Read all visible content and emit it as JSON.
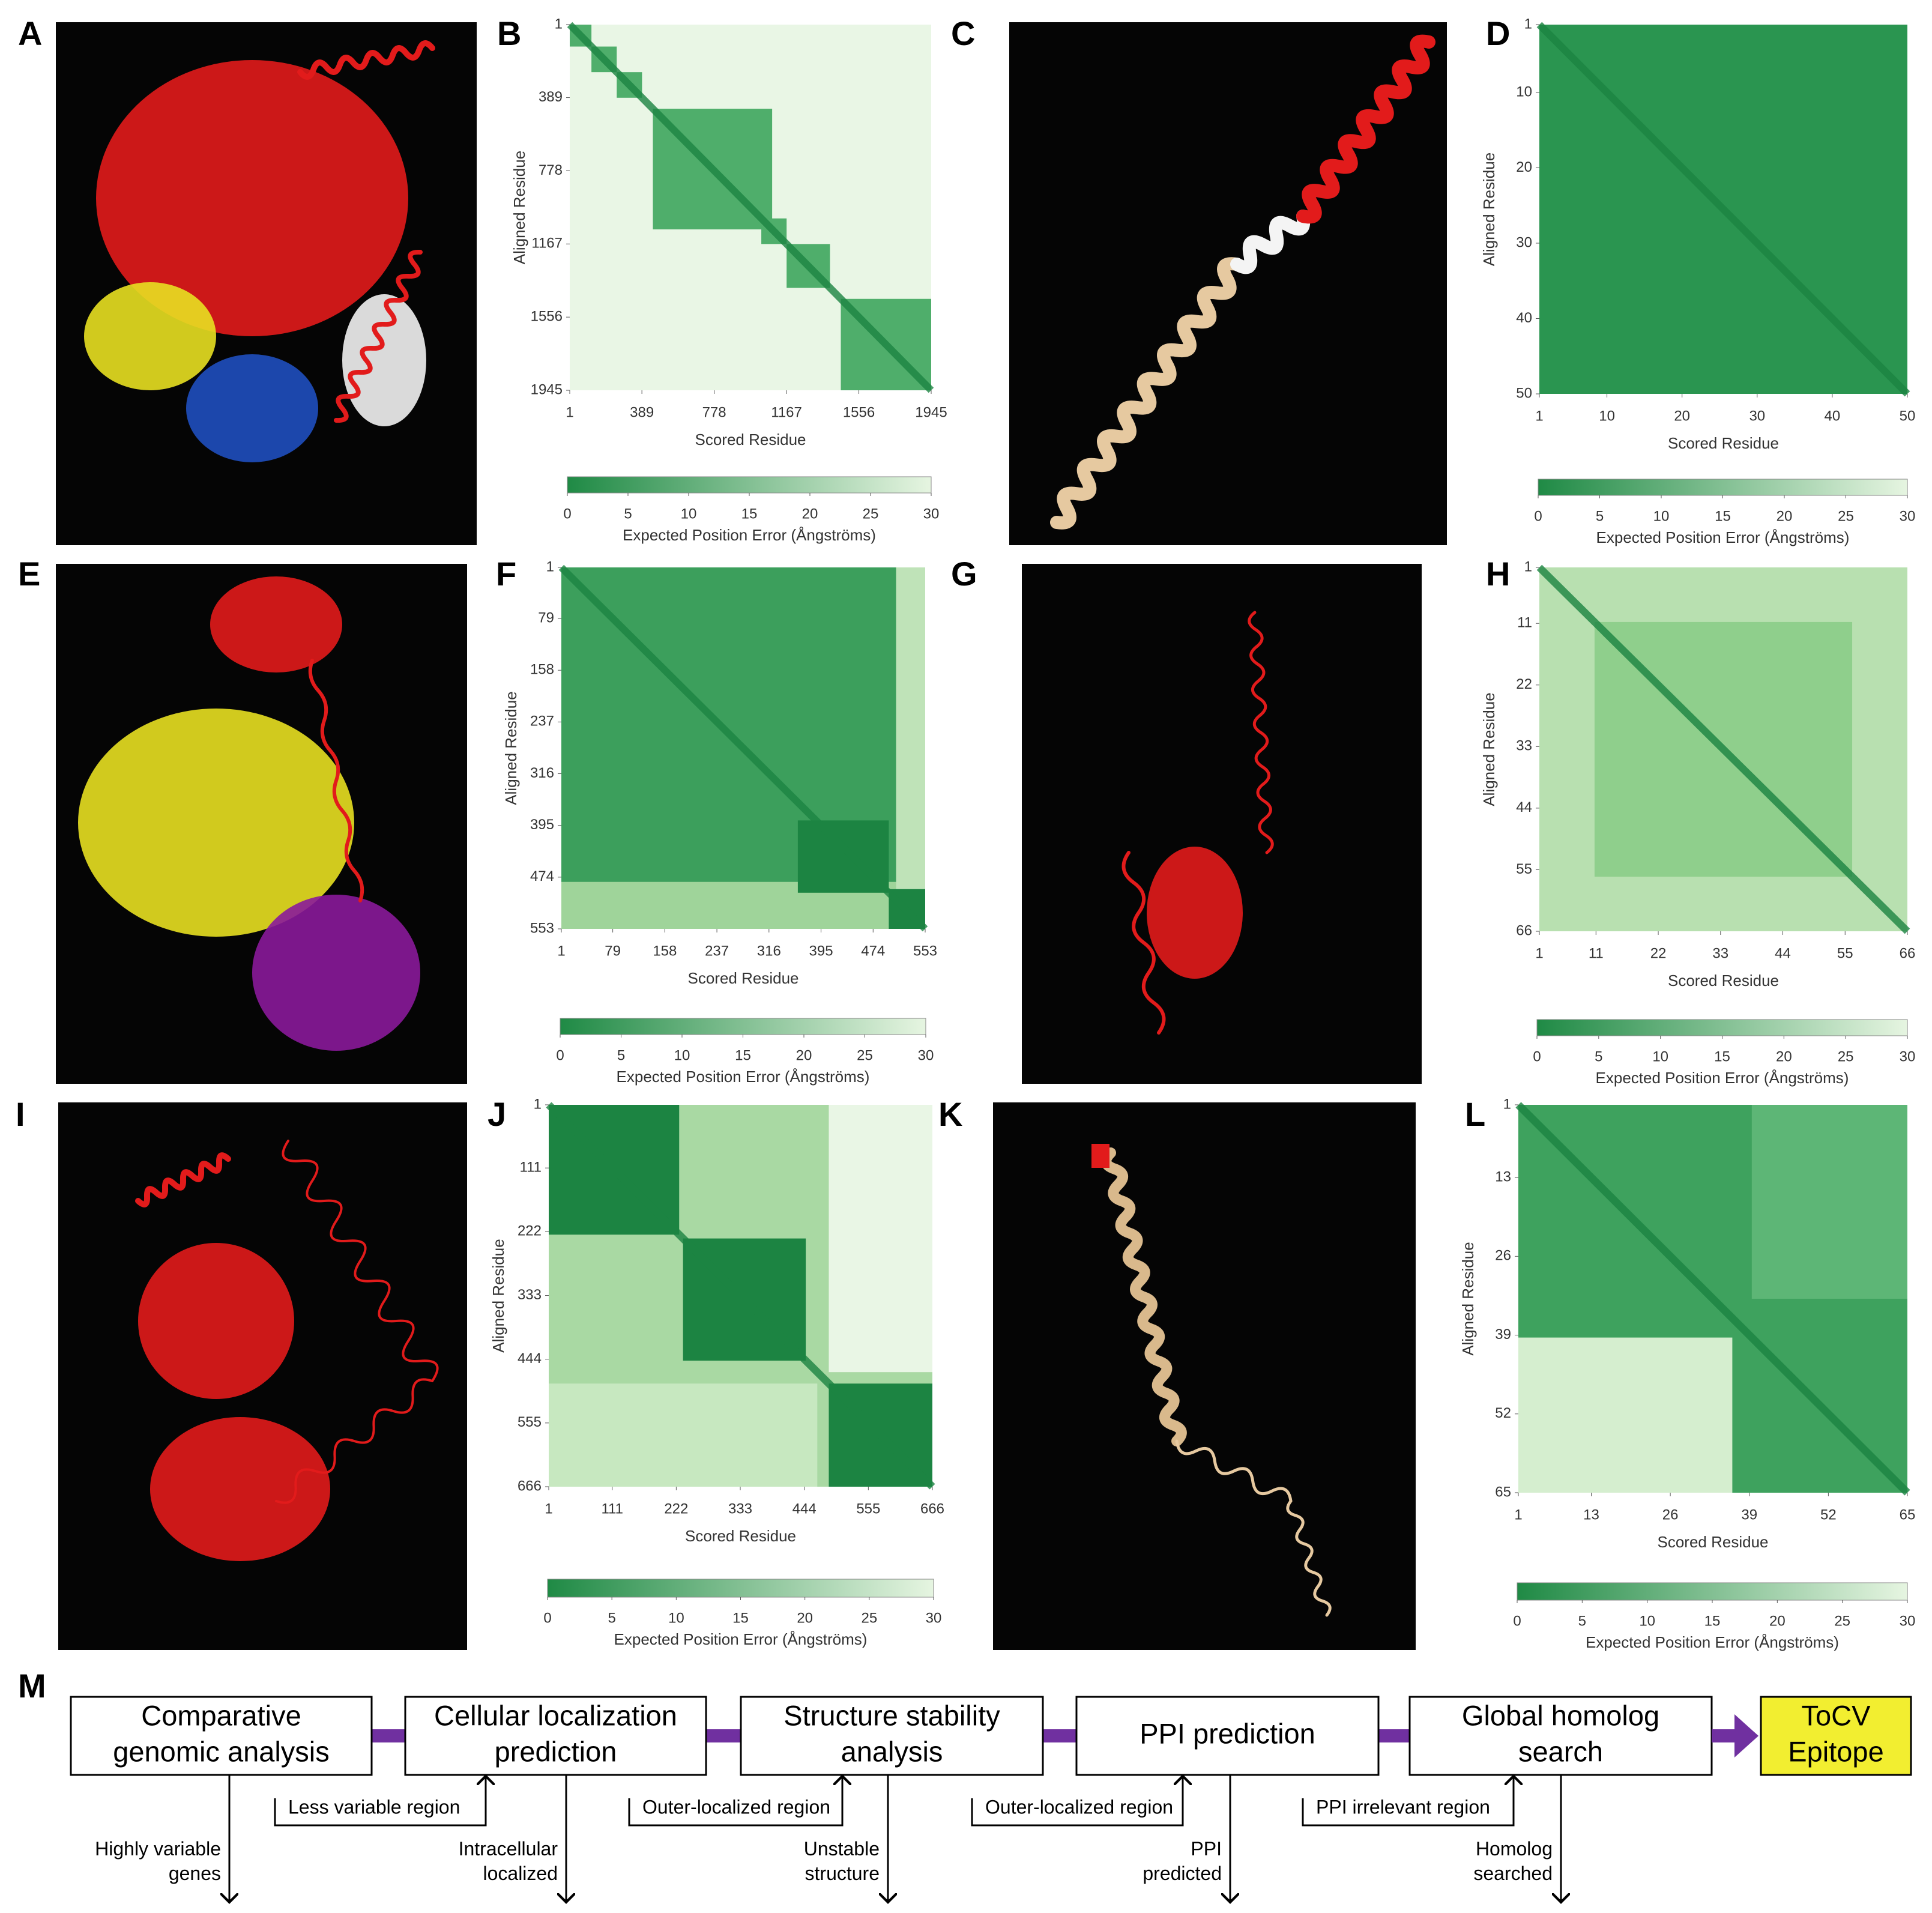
{
  "panels": [
    {
      "letter": "A"
    },
    {
      "letter": "B",
      "heatmap": {
        "xlim": [
          1,
          1945
        ],
        "ylim": [
          1,
          1945
        ],
        "xticks": [
          1,
          389,
          778,
          1167,
          1556,
          1945
        ],
        "yticks": [
          1,
          389,
          778,
          1167,
          1556,
          1945
        ],
        "xlabel": "Scored Residue",
        "ylabel": "Aligned Residue",
        "colorbar_lim": [
          0,
          30
        ],
        "colorbar_ticks": [
          0,
          5,
          10,
          15,
          20,
          25,
          30
        ],
        "colorbar_label": "Expected Position Error (Ångströms)"
      }
    },
    {
      "letter": "C"
    },
    {
      "letter": "D",
      "heatmap": {
        "xlim": [
          1,
          50
        ],
        "ylim": [
          1,
          50
        ],
        "xticks": [
          1,
          10,
          20,
          30,
          40,
          50
        ],
        "yticks": [
          1,
          10,
          20,
          30,
          40,
          50
        ],
        "xlabel": "Scored Residue",
        "ylabel": "Aligned Residue",
        "colorbar_lim": [
          0,
          30
        ],
        "colorbar_ticks": [
          0,
          5,
          10,
          15,
          20,
          25,
          30
        ],
        "colorbar_label": "Expected Position Error (Ångströms)"
      }
    },
    {
      "letter": "E"
    },
    {
      "letter": "F",
      "heatmap": {
        "xlim": [
          1,
          553
        ],
        "ylim": [
          1,
          553
        ],
        "xticks": [
          1,
          79,
          158,
          237,
          316,
          395,
          474,
          553
        ],
        "yticks": [
          1,
          79,
          158,
          237,
          316,
          395,
          474,
          553
        ],
        "xlabel": "Scored Residue",
        "ylabel": "Aligned Residue",
        "colorbar_lim": [
          0,
          30
        ],
        "colorbar_ticks": [
          0,
          5,
          10,
          15,
          20,
          25,
          30
        ],
        "colorbar_label": "Expected Position Error (Ångströms)"
      }
    },
    {
      "letter": "G"
    },
    {
      "letter": "H",
      "heatmap": {
        "xlim": [
          1,
          66
        ],
        "ylim": [
          1,
          66
        ],
        "xticks": [
          1,
          11,
          22,
          33,
          44,
          55,
          66
        ],
        "yticks": [
          1,
          11,
          22,
          33,
          44,
          55,
          66
        ],
        "xlabel": "Scored Residue",
        "ylabel": "Aligned Residue",
        "colorbar_lim": [
          0,
          30
        ],
        "colorbar_ticks": [
          0,
          5,
          10,
          15,
          20,
          25,
          30
        ],
        "colorbar_label": "Expected Position Error (Ångströms)"
      }
    },
    {
      "letter": "I"
    },
    {
      "letter": "J",
      "heatmap": {
        "xlim": [
          1,
          666
        ],
        "ylim": [
          1,
          666
        ],
        "xticks": [
          1,
          111,
          222,
          333,
          444,
          555,
          666
        ],
        "yticks": [
          1,
          111,
          222,
          333,
          444,
          555,
          666
        ],
        "xlabel": "Scored Residue",
        "ylabel": "Aligned Residue",
        "colorbar_lim": [
          0,
          30
        ],
        "colorbar_ticks": [
          0,
          5,
          10,
          15,
          20,
          25,
          30
        ],
        "colorbar_label": "Expected Position Error (Ångströms)"
      }
    },
    {
      "letter": "K"
    },
    {
      "letter": "L",
      "heatmap": {
        "xlim": [
          1,
          65
        ],
        "ylim": [
          1,
          65
        ],
        "xticks": [
          1,
          13,
          26,
          39,
          52,
          65
        ],
        "yticks": [
          1,
          13,
          26,
          39,
          52,
          65
        ],
        "xlabel": "Scored Residue",
        "ylabel": "Aligned Residue",
        "colorbar_lim": [
          0,
          30
        ],
        "colorbar_ticks": [
          0,
          5,
          10,
          15,
          20,
          25,
          30
        ],
        "colorbar_label": "Expected Position Error (Ångströms)"
      }
    }
  ],
  "flow": {
    "letter": "M",
    "steps": [
      {
        "label_lines": [
          "Comparative",
          "genomic analysis"
        ],
        "excluded_lines": [
          "Highly variable",
          "genes"
        ]
      },
      {
        "label_lines": [
          "Cellular localization",
          "prediction"
        ],
        "input": "Less variable region",
        "excluded_lines": [
          "Intracellular",
          "localized"
        ]
      },
      {
        "label_lines": [
          "Structure stability",
          "analysis"
        ],
        "input": "Outer-localized region",
        "excluded_lines": [
          "Unstable",
          "structure"
        ]
      },
      {
        "label_lines": [
          "PPI prediction"
        ],
        "input": "Outer-localized region",
        "excluded_lines": [
          "PPI",
          "predicted"
        ]
      },
      {
        "label_lines": [
          "Global homolog",
          "search"
        ],
        "input": "PPI irrelevant region",
        "excluded_lines": [
          "Homolog",
          "searched"
        ]
      }
    ],
    "target_lines": [
      "ToCV",
      "Epitope"
    ]
  }
}
